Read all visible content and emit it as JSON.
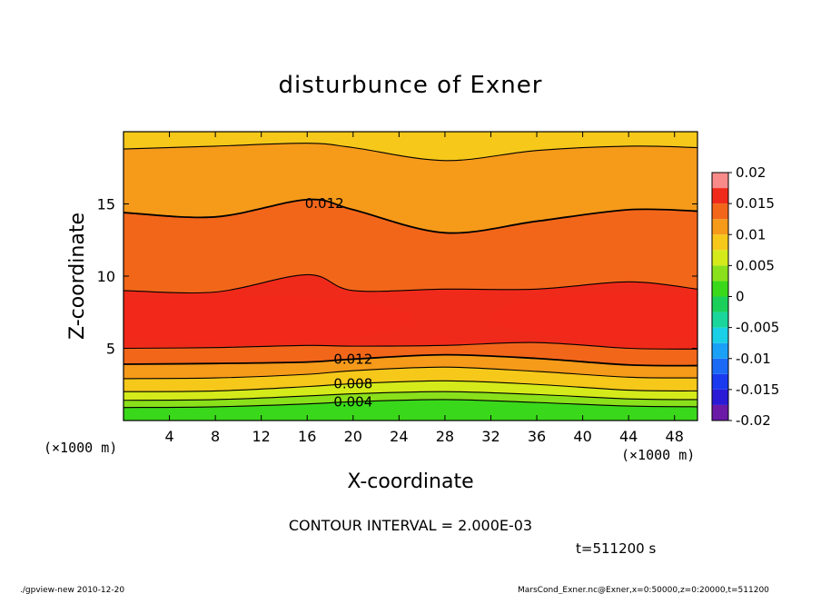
{
  "title": "disturbunce of Exner",
  "xlabel": "X-coordinate",
  "ylabel": "Z-coordinate",
  "x_unit": "(×1000 m)",
  "contour_interval_text": "CONTOUR INTERVAL = 2.000E-03",
  "time_text": "t=511200 s",
  "footer_left": "./gpview-new   2010-12-20",
  "footer_right": "MarsCond_Exner.nc@Exner,x=0:50000,z=0:20000,t=511200",
  "colors": {
    "levels": [
      {
        "from": -0.02,
        "to": -0.0175,
        "color": "#6a1aa6"
      },
      {
        "from": -0.0175,
        "to": -0.015,
        "color": "#2a1ad6"
      },
      {
        "from": -0.015,
        "to": -0.0125,
        "color": "#1a3af0"
      },
      {
        "from": -0.0125,
        "to": -0.01,
        "color": "#1a6af6"
      },
      {
        "from": -0.01,
        "to": -0.0075,
        "color": "#1aa0f6"
      },
      {
        "from": -0.0075,
        "to": -0.005,
        "color": "#1ad0e6"
      },
      {
        "from": -0.005,
        "to": -0.0025,
        "color": "#1ad69a"
      },
      {
        "from": -0.0025,
        "to": 0,
        "color": "#1ad05a"
      },
      {
        "from": 0,
        "to": 0.0025,
        "color": "#3ad81a"
      },
      {
        "from": 0.0025,
        "to": 0.005,
        "color": "#8ae01a"
      },
      {
        "from": 0.005,
        "to": 0.0075,
        "color": "#d4ea1a"
      },
      {
        "from": 0.0075,
        "to": 0.01,
        "color": "#f6c81a"
      },
      {
        "from": 0.01,
        "to": 0.0125,
        "color": "#f69a1a"
      },
      {
        "from": 0.0125,
        "to": 0.015,
        "color": "#f2661a"
      },
      {
        "from": 0.015,
        "to": 0.0175,
        "color": "#f02a1a"
      },
      {
        "from": 0.0175,
        "to": 0.02,
        "color": "#f88a8a"
      }
    ]
  },
  "chart_data": {
    "type": "heatmap",
    "title": "disturbunce of Exner",
    "xlabel": "X-coordinate",
    "ylabel": "Z-coordinate",
    "x_unit": "(×1000 m)",
    "xlim": [
      0,
      50
    ],
    "ylim": [
      0,
      20
    ],
    "x_ticks": [
      4,
      8,
      12,
      16,
      20,
      24,
      28,
      32,
      36,
      40,
      44,
      48
    ],
    "y_ticks": [
      5,
      10,
      15
    ],
    "colorbar_ticks": [
      "0.02",
      "0.015",
      "0.01",
      "0.005",
      "0",
      "-0.005",
      "-0.01",
      "-0.015",
      "-0.02"
    ],
    "colorbar_range": [
      -0.02,
      0.02
    ],
    "contour_interval": 0.002,
    "contour_labels": [
      "0.012",
      "0.012",
      "0.008",
      "0.004"
    ],
    "contours": [
      {
        "value": 0.004,
        "label": "0.004",
        "x": [
          0,
          8,
          16,
          20,
          28,
          36,
          44,
          50
        ],
        "z": [
          0.9,
          0.95,
          1.15,
          1.3,
          1.45,
          1.25,
          1.0,
          0.95
        ]
      },
      {
        "value": 0.006,
        "label": "",
        "x": [
          0,
          8,
          16,
          20,
          28,
          36,
          44,
          50
        ],
        "z": [
          1.4,
          1.45,
          1.7,
          1.85,
          2.0,
          1.8,
          1.5,
          1.45
        ]
      },
      {
        "value": 0.008,
        "label": "0.008",
        "x": [
          0,
          8,
          16,
          20,
          28,
          36,
          44,
          50
        ],
        "z": [
          2.0,
          2.05,
          2.35,
          2.55,
          2.75,
          2.5,
          2.1,
          2.05
        ]
      },
      {
        "value": 0.01,
        "label": "",
        "x": [
          0,
          8,
          16,
          20,
          28,
          36,
          44,
          50
        ],
        "z": [
          2.9,
          2.95,
          3.2,
          3.45,
          3.7,
          3.4,
          3.0,
          2.95
        ]
      },
      {
        "value": 0.012,
        "label": "0.012",
        "x": [
          0,
          8,
          16,
          20,
          28,
          36,
          44,
          50
        ],
        "z": [
          3.9,
          3.95,
          4.05,
          4.25,
          4.55,
          4.3,
          3.85,
          3.8
        ]
      },
      {
        "value": 0.014,
        "label": "",
        "x": [
          0,
          8,
          16,
          20,
          28,
          36,
          44,
          50
        ],
        "z": [
          5.0,
          5.05,
          5.2,
          5.15,
          5.2,
          5.4,
          5.0,
          4.95
        ]
      },
      {
        "value": 0.014,
        "label": "",
        "x": [
          0,
          8,
          16,
          20,
          28,
          36,
          44,
          50
        ],
        "z": [
          9.0,
          8.9,
          10.1,
          9.0,
          9.1,
          9.1,
          9.6,
          9.1
        ]
      },
      {
        "value": 0.012,
        "label": "0.012",
        "x": [
          0,
          8,
          16,
          20,
          28,
          36,
          44,
          50
        ],
        "z": [
          14.4,
          14.1,
          15.3,
          14.6,
          13.0,
          13.8,
          14.6,
          14.5
        ]
      },
      {
        "value": 0.01,
        "label": "",
        "x": [
          0,
          8,
          16,
          20,
          28,
          36,
          44,
          50
        ],
        "z": [
          18.8,
          19.0,
          19.2,
          18.9,
          18.0,
          18.7,
          19.0,
          18.9
        ]
      }
    ]
  }
}
